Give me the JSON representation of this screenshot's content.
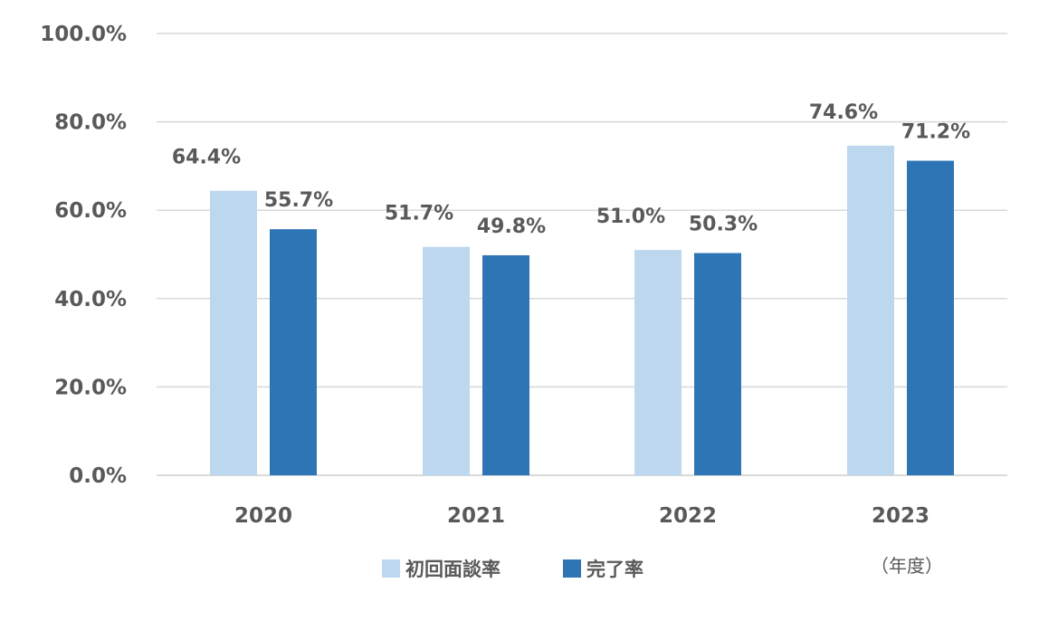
{
  "chart_data": {
    "type": "bar",
    "categories": [
      "2020",
      "2021",
      "2022",
      "2023"
    ],
    "series": [
      {
        "name": "初回面談率",
        "color": "#bdd7ee",
        "values": [
          64.4,
          51.7,
          51.0,
          74.6
        ],
        "labels": [
          "64.4%",
          "51.7%",
          "51.0%",
          "74.6%"
        ]
      },
      {
        "name": "完了率",
        "color": "#2e75b6",
        "values": [
          55.7,
          49.8,
          50.3,
          71.2
        ],
        "labels": [
          "55.7%",
          "49.8%",
          "50.3%",
          "71.2%"
        ]
      }
    ],
    "ylim": [
      0,
      100
    ],
    "yticks": [
      0,
      20,
      40,
      60,
      80,
      100
    ],
    "ytick_labels": [
      "0.0%",
      "20.0%",
      "40.0%",
      "60.0%",
      "80.0%",
      "100.0%"
    ],
    "grid": true,
    "legend_position": "bottom",
    "unit_label": "（年度）",
    "colors": {
      "grid": "#d9d9d9",
      "text": "#595959"
    }
  }
}
